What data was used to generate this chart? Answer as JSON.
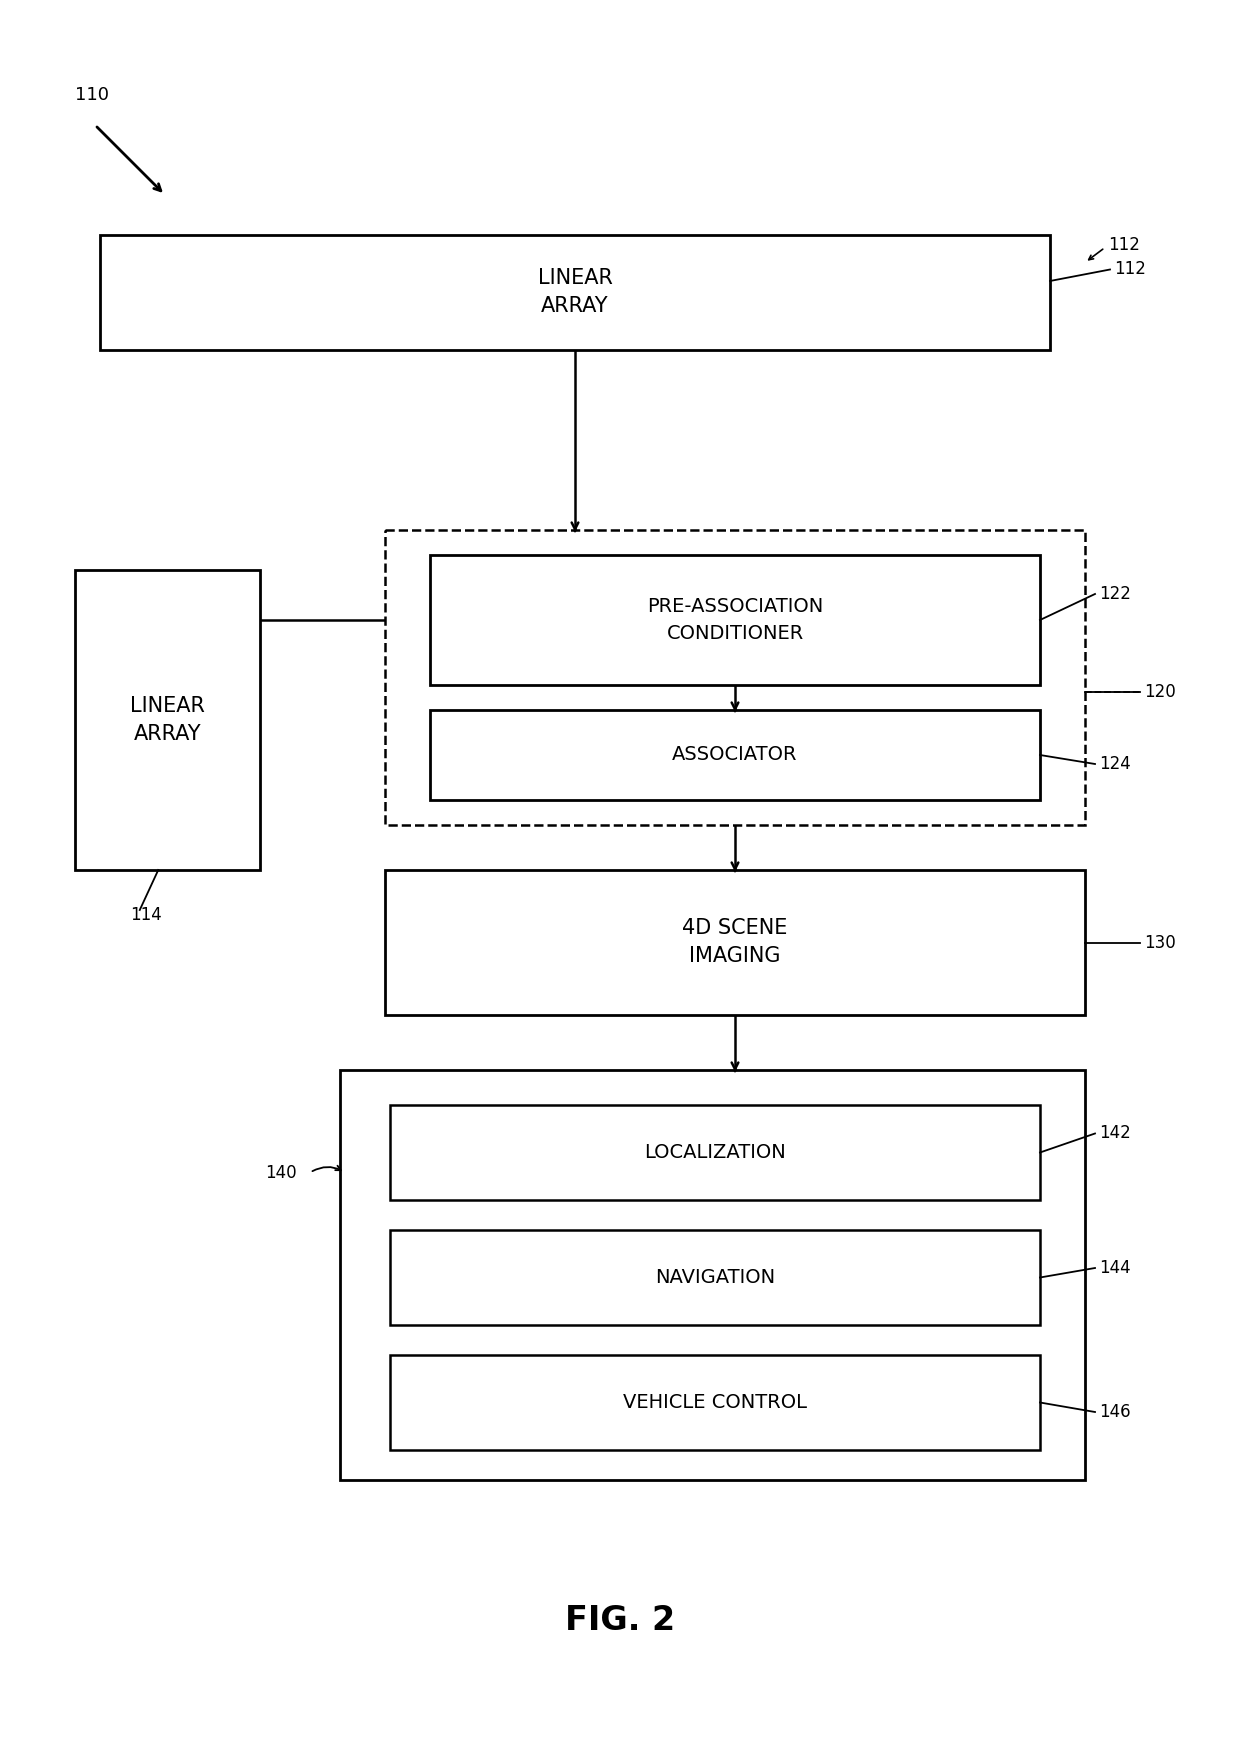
{
  "fig_width": 12.4,
  "fig_height": 17.52,
  "bg_color": "#ffffff",
  "label_110": "110",
  "label_112": "112",
  "label_114": "114",
  "label_120": "120",
  "label_122": "122",
  "label_124": "124",
  "label_130": "130",
  "label_140": "140",
  "label_142": "142",
  "label_144": "144",
  "label_146": "146",
  "text_linear_array_top": "LINEAR\nARRAY",
  "text_linear_array_left": "LINEAR\nARRAY",
  "text_pre_assoc": "PRE-ASSOCIATION\nCONDITIONER",
  "text_associator": "ASSOCIATOR",
  "text_4d": "4D SCENE\nIMAGING",
  "text_localization": "LOCALIZATION",
  "text_navigation": "NAVIGATION",
  "text_vehicle_control": "VEHICLE CONTROL",
  "fig_label": "FIG. 2",
  "font_size_box": 14,
  "font_size_label": 12,
  "font_size_fig": 24
}
